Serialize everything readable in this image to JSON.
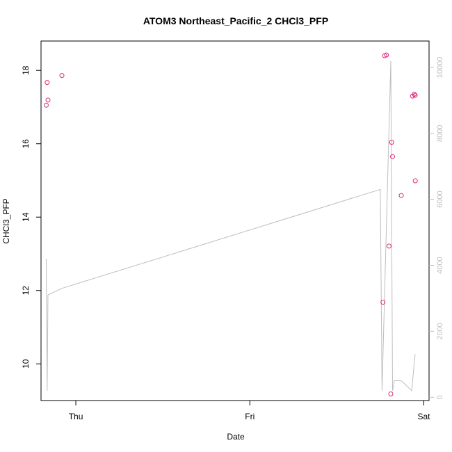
{
  "chart_data": {
    "type": "scatter",
    "title": "ATOM3 Northeast_Pacific_2 CHCl3_PFP",
    "xlabel": "Date",
    "ylabel": "CHCl3_PFP",
    "x_unit": "days (0 = Thu 00:00, 1 = Fri 00:00, 2 = Sat 00:00)",
    "x_ticks": [
      {
        "value": 0,
        "label": "Thu"
      },
      {
        "value": 1,
        "label": "Fri"
      },
      {
        "value": 2,
        "label": "Sat"
      }
    ],
    "xlim": [
      -0.2,
      2.03
    ],
    "ylim": [
      9.0,
      18.8
    ],
    "y_ticks": [
      10,
      12,
      14,
      16,
      18
    ],
    "y2lim": [
      -100,
      10800
    ],
    "y2_ticks": [
      0,
      2000,
      4000,
      6000,
      8000,
      10000
    ],
    "grid": false,
    "series": [
      {
        "kind": "points",
        "axis": "left",
        "color": "#e0287a",
        "x": [
          -0.17,
          -0.165,
          -0.16,
          -0.08,
          1.765,
          1.775,
          1.785,
          1.8,
          1.81,
          1.815,
          1.82,
          1.87,
          1.935,
          1.945,
          1.95
        ],
        "y": [
          17.05,
          17.67,
          17.19,
          17.86,
          11.68,
          18.4,
          18.42,
          13.21,
          9.18,
          16.04,
          15.65,
          14.59,
          17.3,
          17.35,
          17.32
        ]
      },
      {
        "kind": "points",
        "axis": "left",
        "color": "#e0287a",
        "x": [
          1.951
        ],
        "y": [
          14.99
        ]
      },
      {
        "kind": "line",
        "axis": "right",
        "color": "#bebebe",
        "x": [
          -0.17,
          -0.165,
          -0.16,
          -0.08,
          1.75,
          1.76,
          1.81,
          1.82,
          1.83,
          1.87,
          1.93,
          1.95
        ],
        "y": [
          4200,
          200,
          3100,
          3300,
          6300,
          200,
          10200,
          200,
          500,
          500,
          200,
          1300
        ]
      }
    ]
  }
}
